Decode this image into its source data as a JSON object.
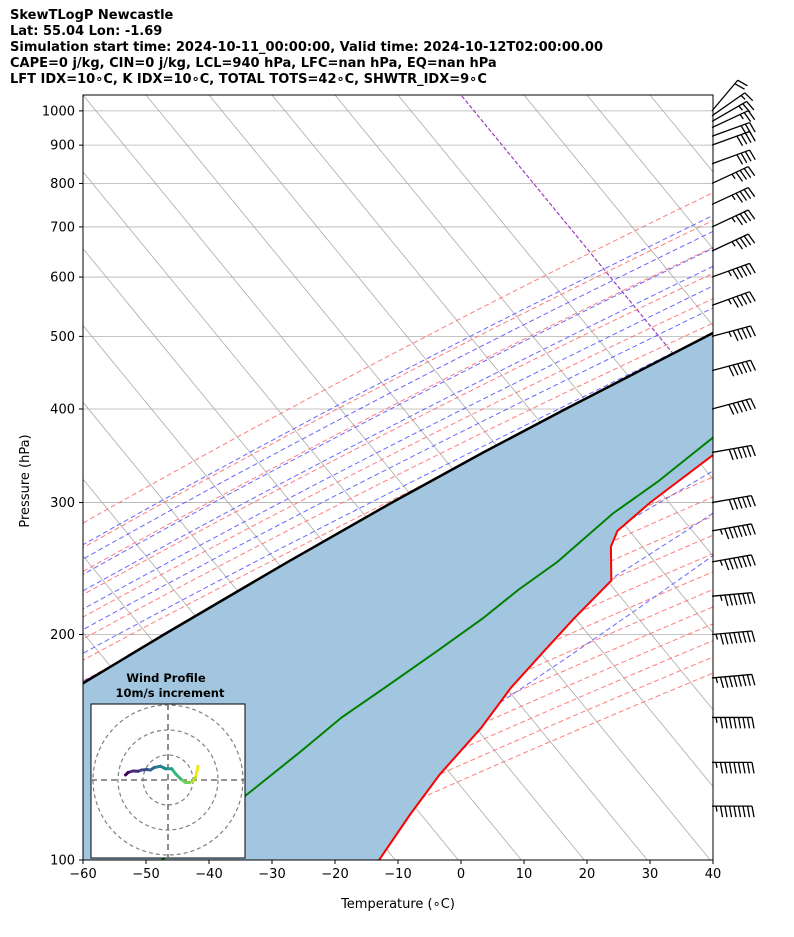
{
  "header": {
    "line1": "SkewTLogP Newcastle",
    "line2": "Lat: 55.04   Lon: -1.69",
    "line3": "Simulation start time: 2024-10-11_00:00:00, Valid time: 2024-10-12T02:00:00.00",
    "line4": "CAPE=0 j/kg, CIN=0 j/kg, LCL=940 hPa, LFC=nan hPa, EQ=nan hPa",
    "line5": "LFT IDX=10∘C, K IDX=10∘C, TOTAL TOTS=42∘C, SHWTR_IDX=9∘C"
  },
  "colors": {
    "temperature": "#ff0000",
    "dewpoint": "#008000",
    "parcel": "#000000",
    "cape_fill": "#a2c6df",
    "dry_adiabat": "#ff6666",
    "moist_adiabat": "#4d4dff",
    "mixing_ratio": "#6666ff",
    "isotherm": "#aaaaaa",
    "zero_isotherm": "#9d3dbd"
  },
  "chart_data": [
    {
      "type": "line",
      "subtype": "skew-T log-P",
      "xlabel": "Temperature (∘C)",
      "ylabel": "Pressure (hPa)",
      "xlim": [
        -60,
        40
      ],
      "ylim": [
        1050,
        100
      ],
      "y_scale": "log",
      "grid": true,
      "x_ticks": [
        "−60",
        "−50",
        "−40",
        "−30",
        "−20",
        "−10",
        "0",
        "10",
        "20",
        "30",
        "40"
      ],
      "x_tick_values": [
        -60,
        -50,
        -40,
        -30,
        -20,
        -10,
        0,
        10,
        20,
        30,
        40
      ],
      "y_ticks": [
        100,
        200,
        300,
        400,
        500,
        600,
        700,
        800,
        900,
        1000
      ],
      "series": [
        {
          "key": "temperature",
          "pressure": [
            1000,
            970,
            950,
            925,
            900,
            850,
            800,
            750,
            700,
            650,
            600,
            550,
            500,
            450,
            400,
            350,
            300,
            275,
            262,
            236,
            210,
            190,
            170,
            150,
            130,
            115,
            100
          ],
          "values": [
            9.0,
            7.5,
            6.5,
            5.7,
            5.2,
            4.0,
            2.8,
            1.5,
            0.5,
            -0.8,
            -2.2,
            -3.5,
            -5.0,
            -7.0,
            -9.5,
            -12.5,
            -16.5,
            -18.0,
            -17.0,
            -12.5,
            -13.5,
            -14.0,
            -14.5,
            -14.0,
            -14.5,
            -14.0,
            -13.0
          ]
        },
        {
          "key": "dewpoint",
          "pressure": [
            1000,
            975,
            950,
            925,
            900,
            850,
            800,
            750,
            700,
            660,
            640,
            600,
            560,
            520,
            500,
            450,
            400,
            350,
            320,
            290,
            250,
            230,
            210,
            190,
            170,
            155,
            140,
            125,
            110,
            100
          ],
          "values": [
            4.5,
            4.8,
            4.5,
            3.8,
            2.5,
            -0.5,
            -3.0,
            -6.5,
            -10.0,
            -12.5,
            -12.5,
            -10.5,
            -8.5,
            -8.0,
            -8.5,
            -10.5,
            -13.0,
            -16.0,
            -18.0,
            -21.0,
            -23.5,
            -26.0,
            -28.0,
            -31.0,
            -34.5,
            -37.5,
            -39.5,
            -42.0,
            -45.0,
            -47.5
          ]
        },
        {
          "key": "parcel",
          "pressure": [
            1000,
            940,
            900,
            850,
            800,
            750,
            700,
            650,
            600,
            550,
            500,
            450,
            400,
            350,
            300,
            250,
            200,
            150,
            125,
            100
          ],
          "values": [
            9.0,
            4.0,
            1.8,
            -1.0,
            -4.0,
            -7.3,
            -10.8,
            -14.7,
            -19.0,
            -23.8,
            -29.2,
            -35.3,
            -42.1,
            -49.5,
            -57.5,
            -66.3,
            -76.5,
            -89.0,
            -96.5,
            -104.5
          ]
        }
      ],
      "wind_barbs": {
        "pressure": [
          1000,
          985,
          968,
          950,
          925,
          900,
          850,
          800,
          750,
          700,
          650,
          600,
          550,
          500,
          450,
          400,
          350,
          300,
          275,
          250,
          225,
          200,
          175,
          155,
          135,
          118
        ],
        "speed_kt": [
          20,
          15,
          25,
          25,
          30,
          40,
          40,
          45,
          45,
          45,
          45,
          55,
          55,
          55,
          60,
          60,
          60,
          60,
          75,
          75,
          75,
          85,
          85,
          85,
          85,
          85
        ],
        "direction_deg": [
          220,
          235,
          240,
          245,
          250,
          250,
          250,
          245,
          245,
          245,
          245,
          250,
          250,
          255,
          255,
          255,
          260,
          260,
          260,
          260,
          265,
          265,
          265,
          270,
          270,
          270
        ]
      },
      "inset": {
        "title": "Wind Profile",
        "subtitle": "10m/s increment",
        "hodograph_u": [
          12,
          11.5,
          11,
          10,
          8.5,
          7,
          5,
          3,
          1.5,
          -1,
          -3,
          -5.5,
          -7,
          -8.5,
          -10.5,
          -12,
          -14,
          -16,
          -17
        ],
        "hodograph_v": [
          5.5,
          3,
          1,
          -0.5,
          -1,
          -1,
          0.5,
          2.5,
          4.5,
          4.5,
          5.5,
          5.0,
          4.0,
          4.2,
          4.0,
          3.5,
          3.6,
          3.0,
          2.0
        ]
      }
    }
  ]
}
